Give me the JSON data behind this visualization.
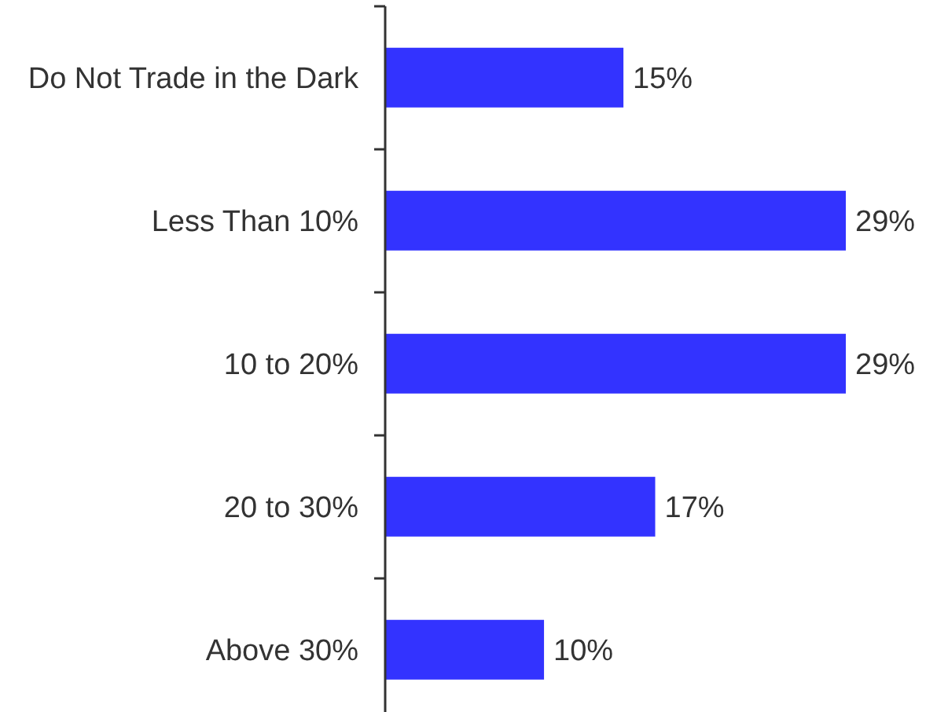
{
  "chart_data": {
    "type": "bar",
    "orientation": "horizontal",
    "categories": [
      "Do Not Trade in the Dark",
      "Less Than 10%",
      "10 to 20%",
      "20 to 30%",
      "Above 30%"
    ],
    "values": [
      15,
      29,
      29,
      17,
      10
    ],
    "value_labels": [
      "15%",
      "29%",
      "29%",
      "17%",
      "10%"
    ],
    "color": "#3333ff"
  }
}
